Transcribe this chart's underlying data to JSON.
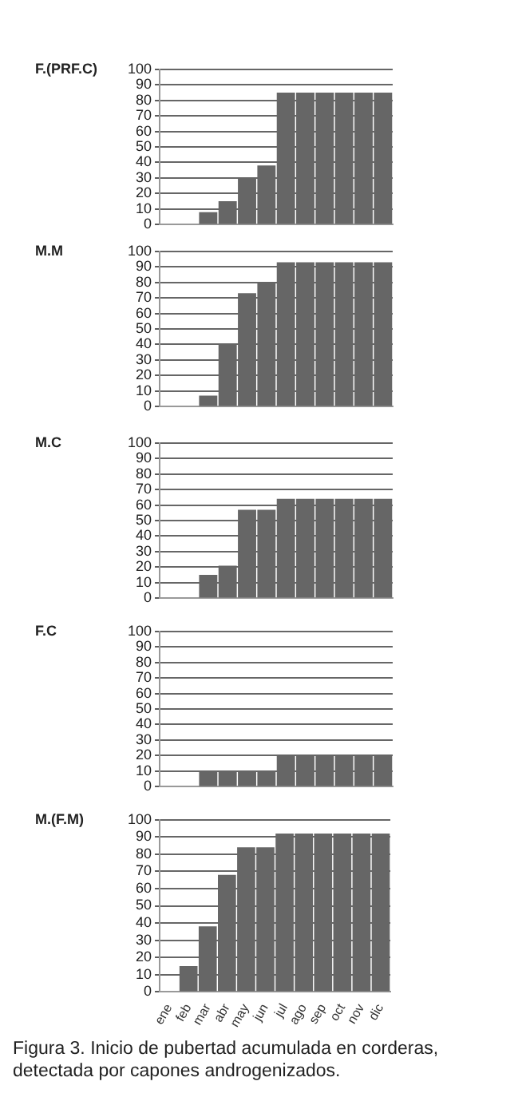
{
  "chart_data": [
    {
      "type": "bar",
      "title": "F.(PRF.C)",
      "categories": [
        null,
        null,
        null,
        null,
        null,
        null,
        null,
        null,
        null,
        null,
        null,
        null
      ],
      "values": [
        0,
        0,
        8,
        15,
        30,
        38,
        85,
        85,
        85,
        85,
        85,
        85
      ],
      "color": "#666666",
      "ylim": [
        0,
        100
      ],
      "yticks": [
        0,
        10,
        20,
        30,
        40,
        50,
        60,
        70,
        80,
        90,
        100
      ],
      "grid": "y",
      "tick_labels": "y"
    },
    {
      "type": "bar",
      "title": "M.M",
      "categories": [
        null,
        null,
        null,
        null,
        null,
        null,
        null,
        null,
        null,
        null,
        null,
        null
      ],
      "values": [
        0,
        0,
        7,
        40,
        73,
        80,
        93,
        93,
        93,
        93,
        93,
        93
      ],
      "color": "#666666",
      "ylim": [
        0,
        100
      ],
      "yticks": [
        0,
        10,
        20,
        30,
        40,
        50,
        60,
        70,
        80,
        90,
        100
      ],
      "grid": "y",
      "tick_labels": "y"
    },
    {
      "type": "bar",
      "title": "M.C",
      "categories": [
        null,
        null,
        null,
        null,
        null,
        null,
        null,
        null,
        null,
        null,
        null,
        null
      ],
      "values": [
        0,
        0,
        15,
        21,
        57,
        57,
        64,
        64,
        64,
        64,
        64,
        64
      ],
      "color": "#666666",
      "ylim": [
        0,
        100
      ],
      "yticks": [
        0,
        10,
        20,
        30,
        40,
        50,
        60,
        70,
        80,
        90,
        100
      ],
      "grid": "y",
      "tick_labels": "y"
    },
    {
      "type": "bar",
      "title": "F.C",
      "categories": [
        null,
        null,
        null,
        null,
        null,
        null,
        null,
        null,
        null,
        null,
        null,
        null
      ],
      "values": [
        0,
        0,
        10,
        10,
        10,
        10,
        20,
        20,
        20,
        20,
        20,
        20
      ],
      "color": "#666666",
      "ylim": [
        0,
        100
      ],
      "yticks": [
        0,
        10,
        20,
        30,
        40,
        50,
        60,
        70,
        80,
        90,
        100
      ],
      "grid": "y",
      "tick_labels": "y"
    },
    {
      "type": "bar",
      "title": "M.(F.M)",
      "categories": [
        "ene",
        "feb",
        "mar",
        "abr",
        "may",
        "jun",
        "jul",
        "ago",
        "sep",
        "oct",
        "nov",
        "dic"
      ],
      "values": [
        null,
        15,
        38,
        68,
        84,
        84,
        92,
        92,
        92,
        92,
        92,
        92
      ],
      "color": "#666666",
      "ylim": [
        0,
        100
      ],
      "yticks": [
        0,
        10,
        20,
        30,
        40,
        50,
        60,
        70,
        80,
        90,
        100
      ],
      "grid": "y",
      "annotations": [
        "Figura 3. Inicio de pubertad acumulada en corderas, detectada por capones androgenizados."
      ]
    }
  ]
}
